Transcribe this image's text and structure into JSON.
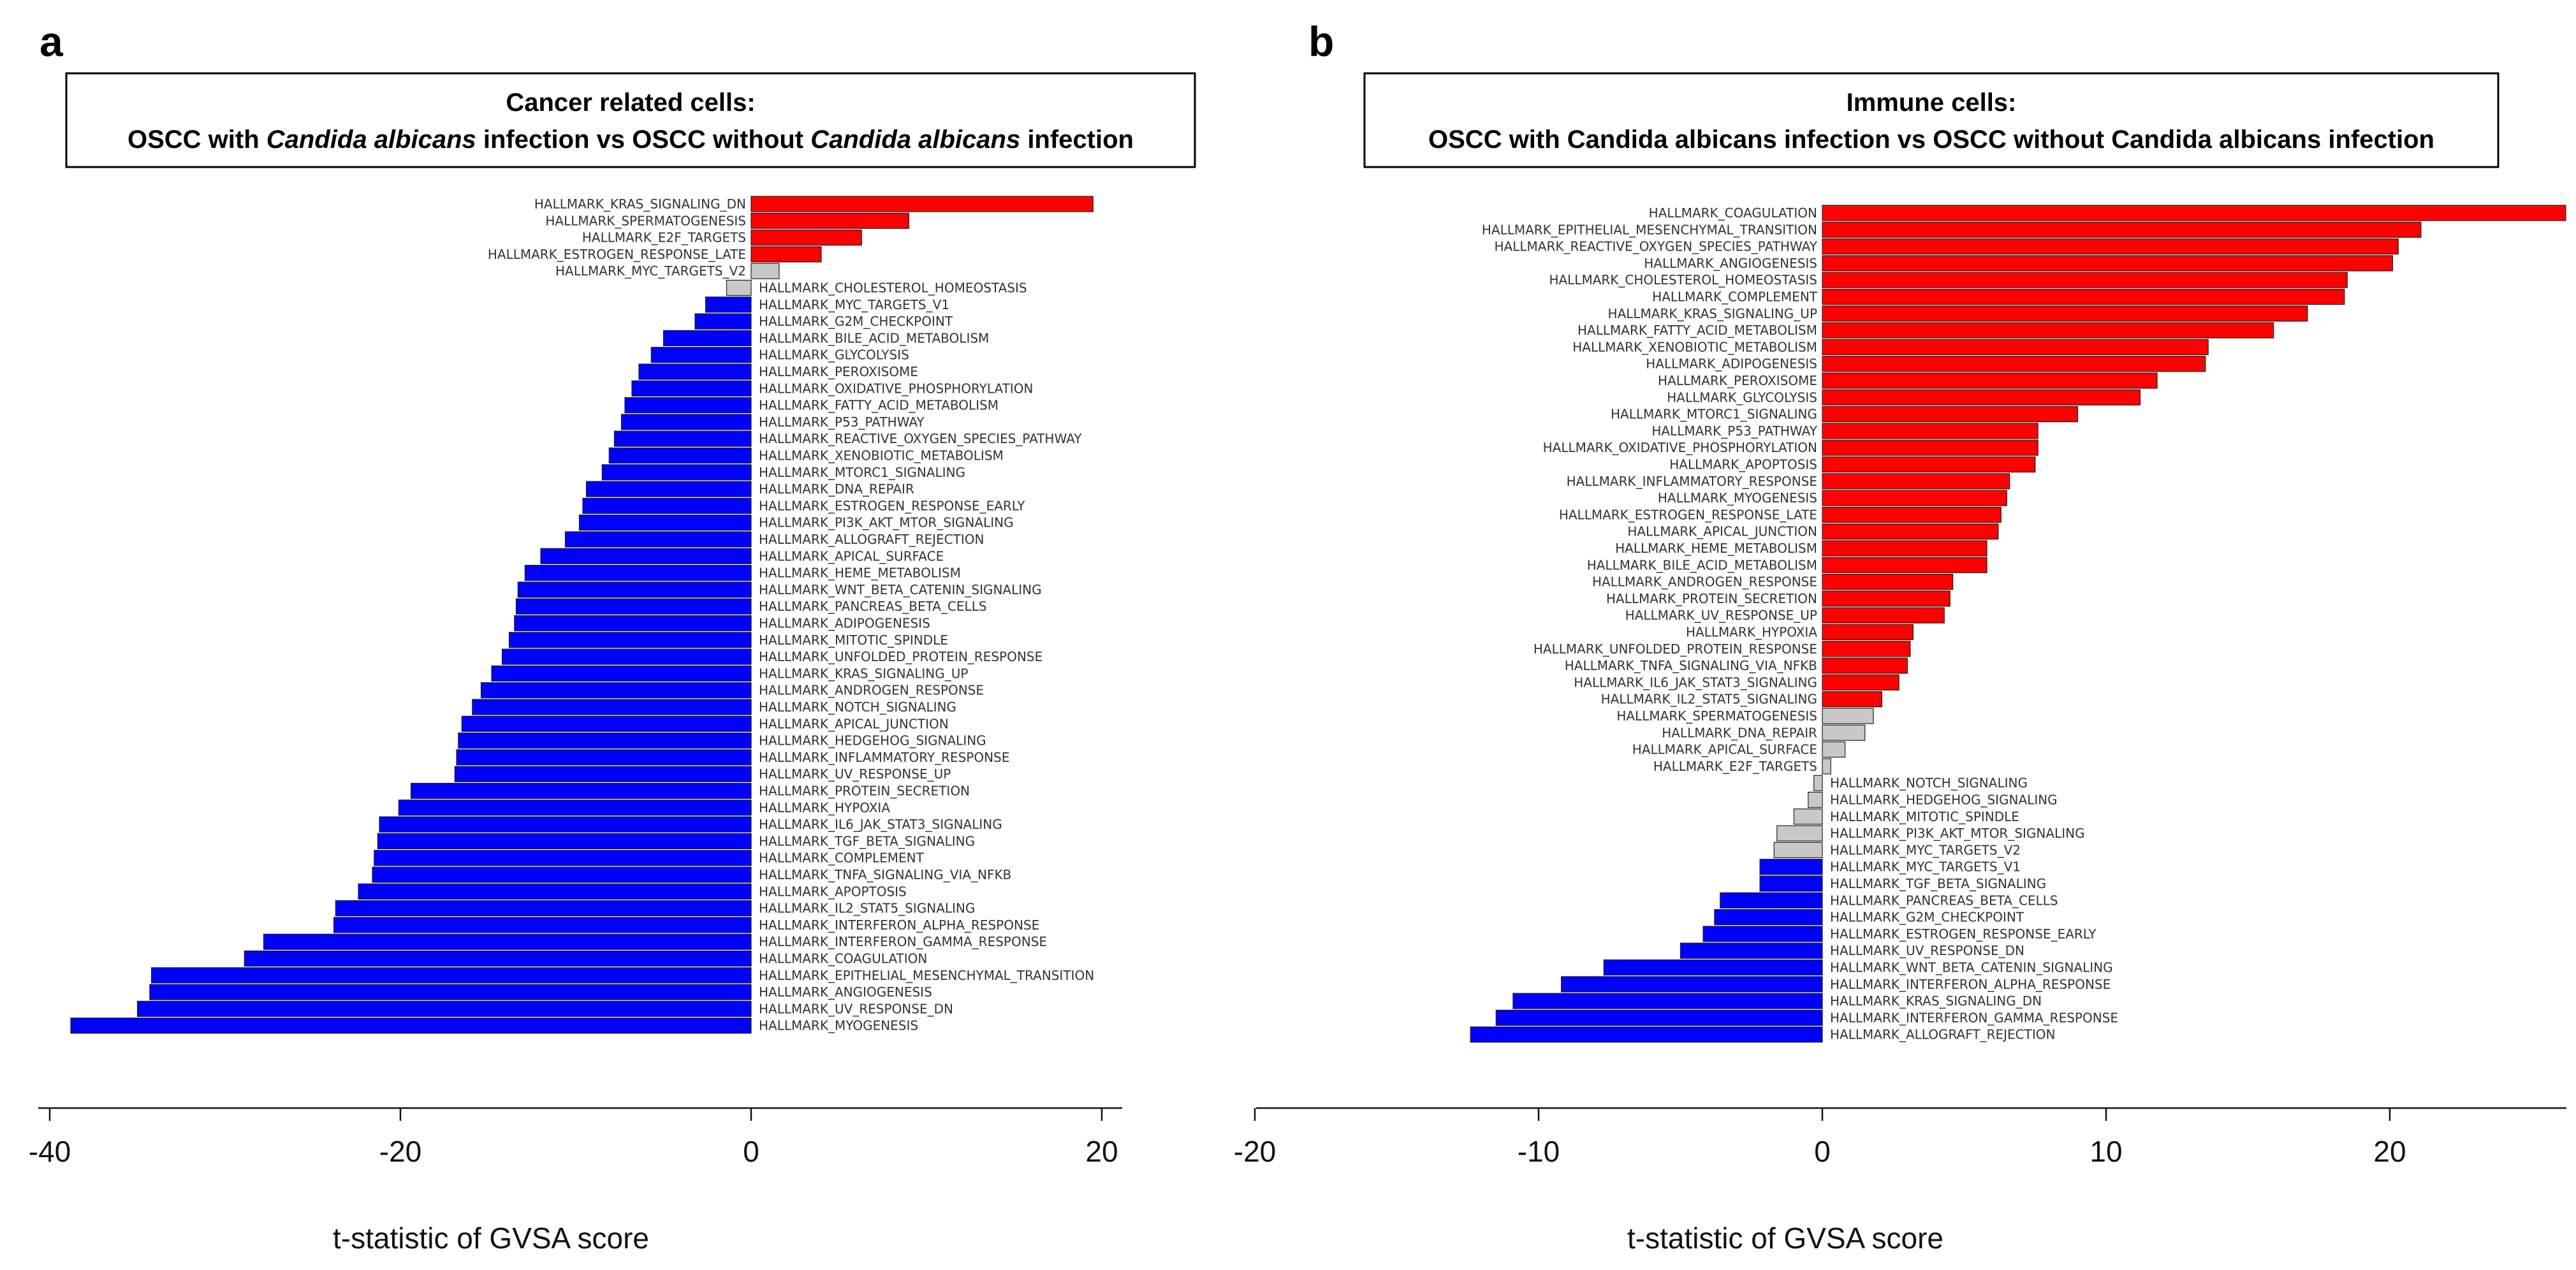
{
  "colors": {
    "up": "#ff0000",
    "down": "#0000ff",
    "ns": "#c8c8c8",
    "axis": "#111111"
  },
  "chart_data": [
    {
      "panel": "a",
      "type": "bar",
      "orientation": "horizontal",
      "title_line1": "Cancer related cells:",
      "title_line2": [
        {
          "text": "OSCC with ",
          "italic": false
        },
        {
          "text": "Candida albicans",
          "italic": true
        },
        {
          "text": " infection vs OSCC without ",
          "italic": false
        },
        {
          "text": "Candida albicans",
          "italic": true
        },
        {
          "text": " infection",
          "italic": false
        }
      ],
      "xlabel": "t-statistic of GVSA score",
      "xlim": [
        -40,
        20
      ],
      "xticks": [
        -40,
        -20,
        0,
        20
      ],
      "bars": [
        {
          "label": "HALLMARK_KRAS_SIGNALING_DN",
          "value": 19.5,
          "status": "up"
        },
        {
          "label": "HALLMARK_SPERMATOGENESIS",
          "value": 9.0,
          "status": "up"
        },
        {
          "label": "HALLMARK_E2F_TARGETS",
          "value": 6.3,
          "status": "up"
        },
        {
          "label": "HALLMARK_ESTROGEN_RESPONSE_LATE",
          "value": 4.0,
          "status": "up"
        },
        {
          "label": "HALLMARK_MYC_TARGETS_V2",
          "value": 1.6,
          "status": "ns"
        },
        {
          "label": "HALLMARK_CHOLESTEROL_HOMEOSTASIS",
          "value": -1.4,
          "status": "ns"
        },
        {
          "label": "HALLMARK_MYC_TARGETS_V1",
          "value": -2.6,
          "status": "down"
        },
        {
          "label": "HALLMARK_G2M_CHECKPOINT",
          "value": -3.2,
          "status": "down"
        },
        {
          "label": "HALLMARK_BILE_ACID_METABOLISM",
          "value": -5.0,
          "status": "down"
        },
        {
          "label": "HALLMARK_GLYCOLYSIS",
          "value": -5.7,
          "status": "down"
        },
        {
          "label": "HALLMARK_PEROXISOME",
          "value": -6.4,
          "status": "down"
        },
        {
          "label": "HALLMARK_OXIDATIVE_PHOSPHORYLATION",
          "value": -6.8,
          "status": "down"
        },
        {
          "label": "HALLMARK_FATTY_ACID_METABOLISM",
          "value": -7.2,
          "status": "down"
        },
        {
          "label": "HALLMARK_P53_PATHWAY",
          "value": -7.4,
          "status": "down"
        },
        {
          "label": "HALLMARK_REACTIVE_OXYGEN_SPECIES_PATHWAY",
          "value": -7.8,
          "status": "down"
        },
        {
          "label": "HALLMARK_XENOBIOTIC_METABOLISM",
          "value": -8.1,
          "status": "down"
        },
        {
          "label": "HALLMARK_MTORC1_SIGNALING",
          "value": -8.5,
          "status": "down"
        },
        {
          "label": "HALLMARK_DNA_REPAIR",
          "value": -9.4,
          "status": "down"
        },
        {
          "label": "HALLMARK_ESTROGEN_RESPONSE_EARLY",
          "value": -9.6,
          "status": "down"
        },
        {
          "label": "HALLMARK_PI3K_AKT_MTOR_SIGNALING",
          "value": -9.8,
          "status": "down"
        },
        {
          "label": "HALLMARK_ALLOGRAFT_REJECTION",
          "value": -10.6,
          "status": "down"
        },
        {
          "label": "HALLMARK_APICAL_SURFACE",
          "value": -12.0,
          "status": "down"
        },
        {
          "label": "HALLMARK_HEME_METABOLISM",
          "value": -12.9,
          "status": "down"
        },
        {
          "label": "HALLMARK_WNT_BETA_CATENIN_SIGNALING",
          "value": -13.3,
          "status": "down"
        },
        {
          "label": "HALLMARK_PANCREAS_BETA_CELLS",
          "value": -13.4,
          "status": "down"
        },
        {
          "label": "HALLMARK_ADIPOGENESIS",
          "value": -13.5,
          "status": "down"
        },
        {
          "label": "HALLMARK_MITOTIC_SPINDLE",
          "value": -13.8,
          "status": "down"
        },
        {
          "label": "HALLMARK_UNFOLDED_PROTEIN_RESPONSE",
          "value": -14.2,
          "status": "down"
        },
        {
          "label": "HALLMARK_KRAS_SIGNALING_UP",
          "value": -14.8,
          "status": "down"
        },
        {
          "label": "HALLMARK_ANDROGEN_RESPONSE",
          "value": -15.4,
          "status": "down"
        },
        {
          "label": "HALLMARK_NOTCH_SIGNALING",
          "value": -15.9,
          "status": "down"
        },
        {
          "label": "HALLMARK_APICAL_JUNCTION",
          "value": -16.5,
          "status": "down"
        },
        {
          "label": "HALLMARK_HEDGEHOG_SIGNALING",
          "value": -16.7,
          "status": "down"
        },
        {
          "label": "HALLMARK_INFLAMMATORY_RESPONSE",
          "value": -16.8,
          "status": "down"
        },
        {
          "label": "HALLMARK_UV_RESPONSE_UP",
          "value": -16.9,
          "status": "down"
        },
        {
          "label": "HALLMARK_PROTEIN_SECRETION",
          "value": -19.4,
          "status": "down"
        },
        {
          "label": "HALLMARK_HYPOXIA",
          "value": -20.1,
          "status": "down"
        },
        {
          "label": "HALLMARK_IL6_JAK_STAT3_SIGNALING",
          "value": -21.2,
          "status": "down"
        },
        {
          "label": "HALLMARK_TGF_BETA_SIGNALING",
          "value": -21.3,
          "status": "down"
        },
        {
          "label": "HALLMARK_COMPLEMENT",
          "value": -21.5,
          "status": "down"
        },
        {
          "label": "HALLMARK_TNFA_SIGNALING_VIA_NFKB",
          "value": -21.6,
          "status": "down"
        },
        {
          "label": "HALLMARK_APOPTOSIS",
          "value": -22.4,
          "status": "down"
        },
        {
          "label": "HALLMARK_IL2_STAT5_SIGNALING",
          "value": -23.7,
          "status": "down"
        },
        {
          "label": "HALLMARK_INTERFERON_ALPHA_RESPONSE",
          "value": -23.8,
          "status": "down"
        },
        {
          "label": "HALLMARK_INTERFERON_GAMMA_RESPONSE",
          "value": -27.8,
          "status": "down"
        },
        {
          "label": "HALLMARK_COAGULATION",
          "value": -28.9,
          "status": "down"
        },
        {
          "label": "HALLMARK_EPITHELIAL_MESENCHYMAL_TRANSITION",
          "value": -34.2,
          "status": "down"
        },
        {
          "label": "HALLMARK_ANGIOGENESIS",
          "value": -34.3,
          "status": "down"
        },
        {
          "label": "HALLMARK_UV_RESPONSE_DN",
          "value": -35.0,
          "status": "down"
        },
        {
          "label": "HALLMARK_MYOGENESIS",
          "value": -38.8,
          "status": "down"
        }
      ]
    },
    {
      "panel": "b",
      "type": "bar",
      "orientation": "horizontal",
      "title_line1": "Immune cells:",
      "title_line2": [
        {
          "text": "OSCC with Candida albicans infection vs OSCC without Candida albicans infection",
          "italic": false
        }
      ],
      "xlabel": "t-statistic of GVSA score",
      "xlim": [
        -20,
        26
      ],
      "xticks": [
        -20,
        -10,
        0,
        10,
        20
      ],
      "bars": [
        {
          "label": "HALLMARK_COAGULATION",
          "value": 26.2,
          "status": "up"
        },
        {
          "label": "HALLMARK_EPITHELIAL_MESENCHYMAL_TRANSITION",
          "value": 21.1,
          "status": "up"
        },
        {
          "label": "HALLMARK_REACTIVE_OXYGEN_SPECIES_PATHWAY",
          "value": 20.3,
          "status": "up"
        },
        {
          "label": "HALLMARK_ANGIOGENESIS",
          "value": 20.1,
          "status": "up"
        },
        {
          "label": "HALLMARK_CHOLESTEROL_HOMEOSTASIS",
          "value": 18.5,
          "status": "up"
        },
        {
          "label": "HALLMARK_COMPLEMENT",
          "value": 18.4,
          "status": "up"
        },
        {
          "label": "HALLMARK_KRAS_SIGNALING_UP",
          "value": 17.1,
          "status": "up"
        },
        {
          "label": "HALLMARK_FATTY_ACID_METABOLISM",
          "value": 15.9,
          "status": "up"
        },
        {
          "label": "HALLMARK_XENOBIOTIC_METABOLISM",
          "value": 13.6,
          "status": "up"
        },
        {
          "label": "HALLMARK_ADIPOGENESIS",
          "value": 13.5,
          "status": "up"
        },
        {
          "label": "HALLMARK_PEROXISOME",
          "value": 11.8,
          "status": "up"
        },
        {
          "label": "HALLMARK_GLYCOLYSIS",
          "value": 11.2,
          "status": "up"
        },
        {
          "label": "HALLMARK_MTORC1_SIGNALING",
          "value": 9.0,
          "status": "up"
        },
        {
          "label": "HALLMARK_P53_PATHWAY",
          "value": 7.6,
          "status": "up"
        },
        {
          "label": "HALLMARK_OXIDATIVE_PHOSPHORYLATION",
          "value": 7.6,
          "status": "up"
        },
        {
          "label": "HALLMARK_APOPTOSIS",
          "value": 7.5,
          "status": "up"
        },
        {
          "label": "HALLMARK_INFLAMMATORY_RESPONSE",
          "value": 6.6,
          "status": "up"
        },
        {
          "label": "HALLMARK_MYOGENESIS",
          "value": 6.5,
          "status": "up"
        },
        {
          "label": "HALLMARK_ESTROGEN_RESPONSE_LATE",
          "value": 6.3,
          "status": "up"
        },
        {
          "label": "HALLMARK_APICAL_JUNCTION",
          "value": 6.2,
          "status": "up"
        },
        {
          "label": "HALLMARK_HEME_METABOLISM",
          "value": 5.8,
          "status": "up"
        },
        {
          "label": "HALLMARK_BILE_ACID_METABOLISM",
          "value": 5.8,
          "status": "up"
        },
        {
          "label": "HALLMARK_ANDROGEN_RESPONSE",
          "value": 4.6,
          "status": "up"
        },
        {
          "label": "HALLMARK_PROTEIN_SECRETION",
          "value": 4.5,
          "status": "up"
        },
        {
          "label": "HALLMARK_UV_RESPONSE_UP",
          "value": 4.3,
          "status": "up"
        },
        {
          "label": "HALLMARK_HYPOXIA",
          "value": 3.2,
          "status": "up"
        },
        {
          "label": "HALLMARK_UNFOLDED_PROTEIN_RESPONSE",
          "value": 3.1,
          "status": "up"
        },
        {
          "label": "HALLMARK_TNFA_SIGNALING_VIA_NFKB",
          "value": 3.0,
          "status": "up"
        },
        {
          "label": "HALLMARK_IL6_JAK_STAT3_SIGNALING",
          "value": 2.7,
          "status": "up"
        },
        {
          "label": "HALLMARK_IL2_STAT5_SIGNALING",
          "value": 2.1,
          "status": "up"
        },
        {
          "label": "HALLMARK_SPERMATOGENESIS",
          "value": 1.8,
          "status": "ns"
        },
        {
          "label": "HALLMARK_DNA_REPAIR",
          "value": 1.5,
          "status": "ns"
        },
        {
          "label": "HALLMARK_APICAL_SURFACE",
          "value": 0.8,
          "status": "ns"
        },
        {
          "label": "HALLMARK_E2F_TARGETS",
          "value": 0.3,
          "status": "ns"
        },
        {
          "label": "HALLMARK_NOTCH_SIGNALING",
          "value": -0.3,
          "status": "ns"
        },
        {
          "label": "HALLMARK_HEDGEHOG_SIGNALING",
          "value": -0.5,
          "status": "ns"
        },
        {
          "label": "HALLMARK_MITOTIC_SPINDLE",
          "value": -1.0,
          "status": "ns"
        },
        {
          "label": "HALLMARK_PI3K_AKT_MTOR_SIGNALING",
          "value": -1.6,
          "status": "ns"
        },
        {
          "label": "HALLMARK_MYC_TARGETS_V2",
          "value": -1.7,
          "status": "ns"
        },
        {
          "label": "HALLMARK_MYC_TARGETS_V1",
          "value": -2.2,
          "status": "down"
        },
        {
          "label": "HALLMARK_TGF_BETA_SIGNALING",
          "value": -2.2,
          "status": "down"
        },
        {
          "label": "HALLMARK_PANCREAS_BETA_CELLS",
          "value": -3.6,
          "status": "down"
        },
        {
          "label": "HALLMARK_G2M_CHECKPOINT",
          "value": -3.8,
          "status": "down"
        },
        {
          "label": "HALLMARK_ESTROGEN_RESPONSE_EARLY",
          "value": -4.2,
          "status": "down"
        },
        {
          "label": "HALLMARK_UV_RESPONSE_DN",
          "value": -5.0,
          "status": "down"
        },
        {
          "label": "HALLMARK_WNT_BETA_CATENIN_SIGNALING",
          "value": -7.7,
          "status": "down"
        },
        {
          "label": "HALLMARK_INTERFERON_ALPHA_RESPONSE",
          "value": -9.2,
          "status": "down"
        },
        {
          "label": "HALLMARK_KRAS_SIGNALING_DN",
          "value": -10.9,
          "status": "down"
        },
        {
          "label": "HALLMARK_INTERFERON_GAMMA_RESPONSE",
          "value": -11.5,
          "status": "down"
        },
        {
          "label": "HALLMARK_ALLOGRAFT_REJECTION",
          "value": -12.4,
          "status": "down"
        }
      ]
    }
  ]
}
